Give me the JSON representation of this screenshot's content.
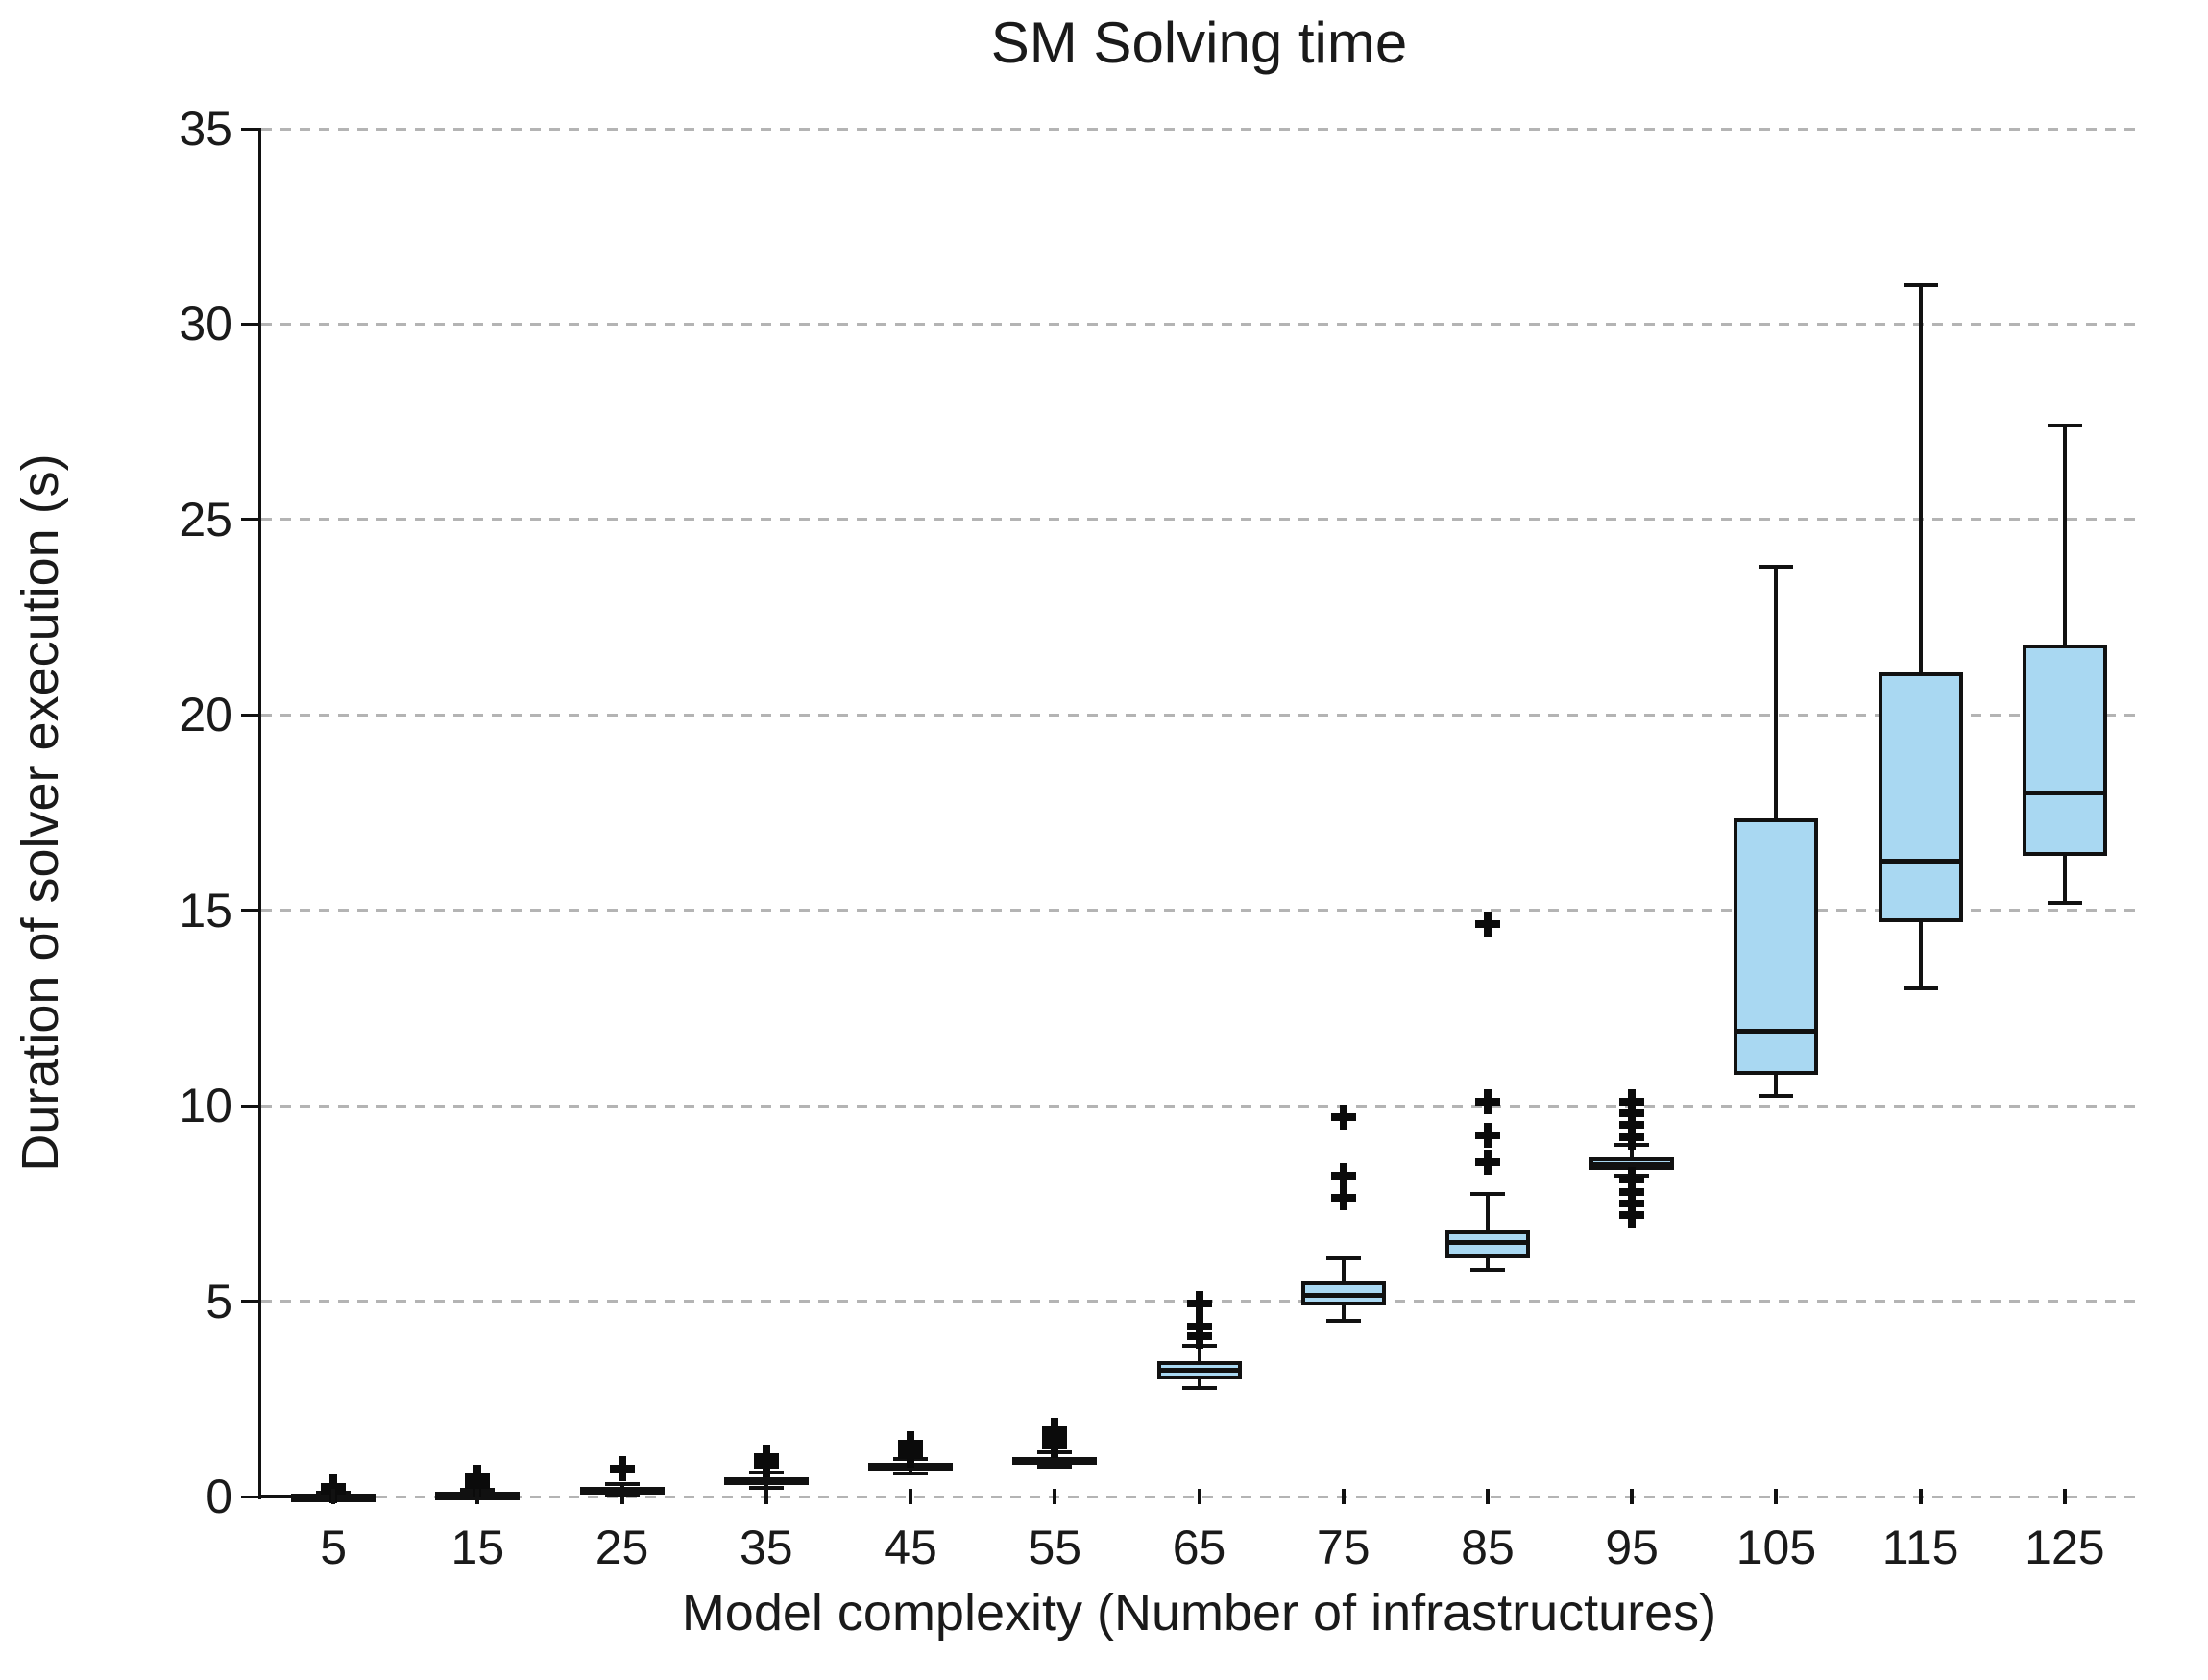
{
  "chart_data": {
    "type": "boxplot",
    "title": "SM Solving time",
    "xlabel": "Model complexity (Number of infrastructures)",
    "ylabel": "Duration of solver execution (s)",
    "ylim": [
      0,
      35
    ],
    "yticks": [
      0,
      5,
      10,
      15,
      20,
      25,
      30,
      35
    ],
    "grid": "horizontal-dashed",
    "legend": "none",
    "colors": {
      "box_fill": "#a9d8f2",
      "box_border": "#111111",
      "gridline": "#b4b4b4",
      "text": "#1a1a1a",
      "background": "#ffffff"
    },
    "categories": [
      "5",
      "15",
      "25",
      "35",
      "45",
      "55",
      "65",
      "75",
      "85",
      "95",
      "105",
      "115",
      "125"
    ],
    "boxes": [
      {
        "category": "5",
        "low": 0.0,
        "q1": 0.0,
        "median": 0.02,
        "q3": 0.05,
        "high": 0.09,
        "outliers": [
          0.15,
          0.25
        ]
      },
      {
        "category": "15",
        "low": 0.0,
        "q1": 0.02,
        "median": 0.06,
        "q3": 0.1,
        "high": 0.18,
        "outliers": [
          0.3,
          0.5
        ]
      },
      {
        "category": "25",
        "low": 0.05,
        "q1": 0.1,
        "median": 0.18,
        "q3": 0.25,
        "high": 0.32,
        "outliers": [
          0.72
        ]
      },
      {
        "category": "35",
        "low": 0.22,
        "q1": 0.3,
        "median": 0.4,
        "q3": 0.5,
        "high": 0.62,
        "outliers": [
          0.8,
          1.0
        ]
      },
      {
        "category": "45",
        "low": 0.6,
        "q1": 0.68,
        "median": 0.76,
        "q3": 0.85,
        "high": 0.95,
        "outliers": [
          1.05,
          1.2,
          1.35
        ]
      },
      {
        "category": "55",
        "low": 0.76,
        "q1": 0.85,
        "median": 0.93,
        "q3": 1.02,
        "high": 1.12,
        "outliers": [
          1.3,
          1.5,
          1.7
        ]
      },
      {
        "category": "65",
        "low": 2.78,
        "q1": 3.0,
        "median": 3.22,
        "q3": 3.47,
        "high": 3.85,
        "outliers": [
          4.1,
          4.35,
          4.95
        ]
      },
      {
        "category": "75",
        "low": 4.5,
        "q1": 4.9,
        "median": 5.15,
        "q3": 5.5,
        "high": 6.1,
        "outliers": [
          7.65,
          8.2,
          9.7
        ]
      },
      {
        "category": "85",
        "low": 5.8,
        "q1": 6.1,
        "median": 6.5,
        "q3": 6.8,
        "high": 7.75,
        "outliers": [
          8.55,
          9.25,
          10.1,
          14.65
        ]
      },
      {
        "category": "95",
        "low": 8.2,
        "q1": 8.36,
        "median": 8.5,
        "q3": 8.67,
        "high": 9.0,
        "outliers": [
          7.2,
          7.5,
          7.8,
          8.1,
          9.2,
          9.5,
          9.8,
          10.1
        ]
      },
      {
        "category": "105",
        "low": 10.25,
        "q1": 10.8,
        "median": 11.9,
        "q3": 17.35,
        "high": 23.8,
        "outliers": []
      },
      {
        "category": "115",
        "low": 13.0,
        "q1": 14.7,
        "median": 16.25,
        "q3": 21.1,
        "high": 31.0,
        "outliers": []
      },
      {
        "category": "125",
        "low": 15.2,
        "q1": 16.4,
        "median": 18.0,
        "q3": 21.8,
        "high": 27.4,
        "outliers": []
      }
    ]
  }
}
